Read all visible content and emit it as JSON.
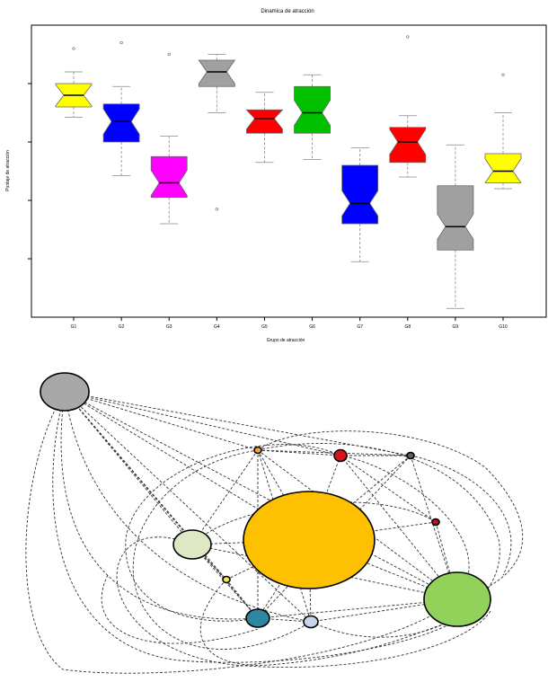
{
  "chart_data": [
    {
      "type": "boxplot",
      "title": "Dinamica de atracción",
      "xlabel": "Grupo de atracción",
      "ylabel": "Puntaje de atracción",
      "ylim": [
        0,
        10
      ],
      "y_ticks": [
        2,
        4,
        6,
        8
      ],
      "y_tick_labels": [
        "",
        "",
        "",
        ""
      ],
      "categories": [
        "G1",
        "G2",
        "G3",
        "G4",
        "G5",
        "G6",
        "G7",
        "G8",
        "G9",
        "G10"
      ],
      "boxes": [
        {
          "label": "G1",
          "color": "#ffff00",
          "whisker_low": 6.85,
          "q1": 7.2,
          "median": 7.6,
          "q3": 8.0,
          "whisker_high": 8.4,
          "outliers": [
            9.2
          ]
        },
        {
          "label": "G2",
          "color": "#0000ff",
          "whisker_low": 4.85,
          "q1": 6.0,
          "median": 6.7,
          "q3": 7.3,
          "whisker_high": 7.9,
          "outliers": [
            9.4
          ]
        },
        {
          "label": "G3",
          "color": "#ff00ff",
          "whisker_low": 3.2,
          "q1": 4.1,
          "median": 4.6,
          "q3": 5.5,
          "whisker_high": 6.2,
          "outliers": [
            9.0
          ]
        },
        {
          "label": "G4",
          "color": "#a0a0a0",
          "whisker_low": 7.0,
          "q1": 7.9,
          "median": 8.4,
          "q3": 8.8,
          "whisker_high": 9.0,
          "outliers": [
            3.7
          ]
        },
        {
          "label": "G5",
          "color": "#ff0000",
          "whisker_low": 5.3,
          "q1": 6.3,
          "median": 6.8,
          "q3": 7.1,
          "whisker_high": 7.7,
          "outliers": []
        },
        {
          "label": "G6",
          "color": "#00c000",
          "whisker_low": 5.4,
          "q1": 6.3,
          "median": 7.0,
          "q3": 7.9,
          "whisker_high": 8.3,
          "outliers": []
        },
        {
          "label": "G7",
          "color": "#0000ff",
          "whisker_low": 1.9,
          "q1": 3.2,
          "median": 3.9,
          "q3": 5.2,
          "whisker_high": 5.8,
          "outliers": []
        },
        {
          "label": "G8",
          "color": "#ff0000",
          "whisker_low": 4.8,
          "q1": 5.3,
          "median": 6.0,
          "q3": 6.5,
          "whisker_high": 6.9,
          "outliers": [
            9.6
          ]
        },
        {
          "label": "G9",
          "color": "#a0a0a0",
          "whisker_low": 0.3,
          "q1": 2.3,
          "median": 3.1,
          "q3": 4.5,
          "whisker_high": 5.9,
          "outliers": []
        },
        {
          "label": "G10",
          "color": "#ffff00",
          "whisker_low": 4.4,
          "q1": 4.6,
          "median": 5.0,
          "q3": 5.6,
          "whisker_high": 7.0,
          "outliers": [
            8.3
          ]
        }
      ]
    },
    {
      "type": "network",
      "nodes": [
        {
          "id": "n1",
          "color": "#a8a8a8",
          "size": 0.38
        },
        {
          "id": "n2",
          "color": "#f2a73a",
          "size": 0.06
        },
        {
          "id": "n3",
          "color": "#d9141c",
          "size": 0.09
        },
        {
          "id": "n4",
          "color": "#606060",
          "size": 0.05
        },
        {
          "id": "n5",
          "color": "#c0141c",
          "size": 0.045
        },
        {
          "id": "n6",
          "color": "#fdc102",
          "size": 1.0
        },
        {
          "id": "n7",
          "color": "#dde8c4",
          "size": 0.3
        },
        {
          "id": "n8",
          "color": "#f5e94b",
          "size": 0.05
        },
        {
          "id": "n9",
          "color": "#92d25a",
          "size": 0.52
        },
        {
          "id": "n10",
          "color": "#2e87a0",
          "size": 0.18
        },
        {
          "id": "n11",
          "color": "#c8d4ee",
          "size": 0.12
        }
      ]
    }
  ]
}
